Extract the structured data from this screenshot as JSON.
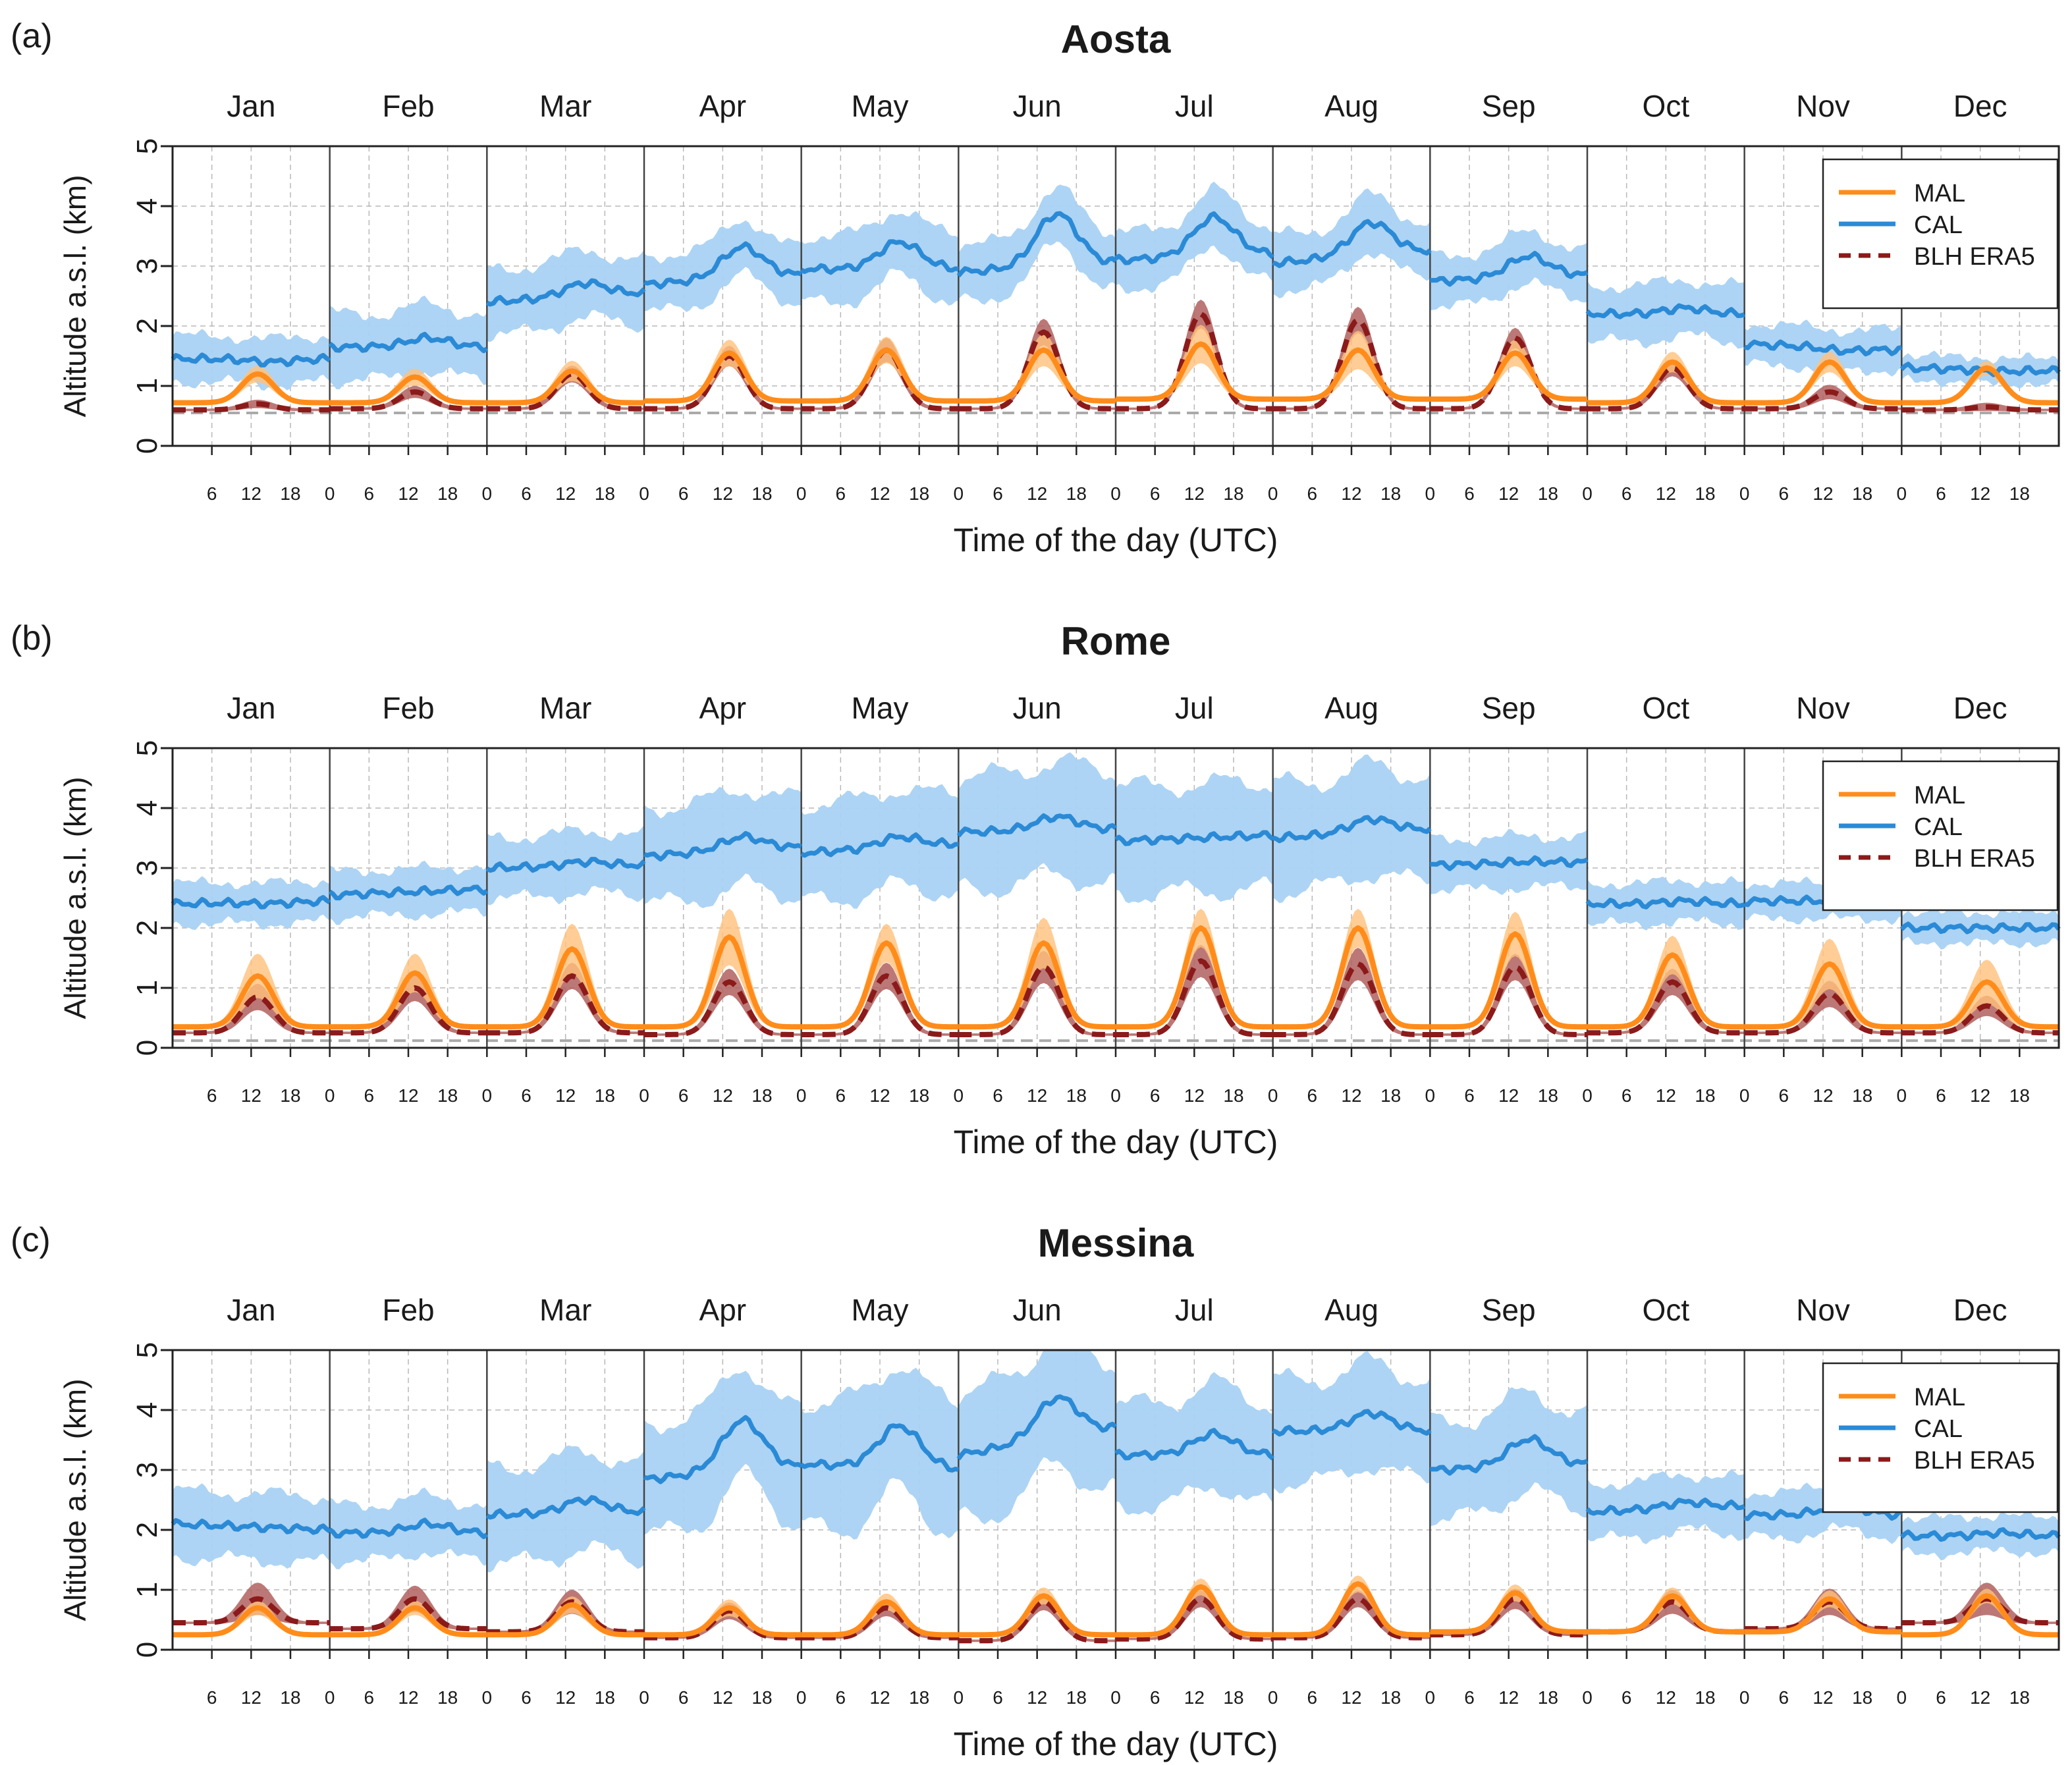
{
  "figure": {
    "xlabel": "Time of the day (UTC)",
    "ylabel": "Altitude a.s.l. (km)",
    "months": [
      "Jan",
      "Feb",
      "Mar",
      "Apr",
      "May",
      "Jun",
      "Jul",
      "Aug",
      "Sep",
      "Oct",
      "Nov",
      "Dec"
    ],
    "hour_ticks": [
      0,
      6,
      12,
      18
    ],
    "y_ticks": [
      0,
      1,
      2,
      3,
      4,
      5
    ],
    "legend": [
      "MAL",
      "CAL",
      "BLH ERA5"
    ],
    "colors": {
      "mal": "#ff8c1a",
      "mal_band": "#ffc07a",
      "cal": "#2b8ad6",
      "cal_band": "#a9d2f3",
      "blh": "#8b1a1a",
      "blh_band": "#b0605e",
      "ground": "#aaaaaa"
    }
  },
  "chart_data": [
    {
      "type": "line",
      "panel_label": "(a)",
      "title": "Aosta",
      "xlabel": "Time of the day (UTC)",
      "ylabel": "Altitude a.s.l. (km)",
      "ylim": [
        0,
        5
      ],
      "ground_level": 0.55,
      "first_hour_tick_jan": 6,
      "series": [
        {
          "name": "MAL",
          "base": [
            0.72,
            0.72,
            0.72,
            0.75,
            0.75,
            0.75,
            0.78,
            0.78,
            0.78,
            0.72,
            0.72,
            0.72
          ],
          "peak": [
            1.2,
            1.15,
            1.25,
            1.55,
            1.6,
            1.6,
            1.7,
            1.6,
            1.55,
            1.4,
            1.4,
            1.3
          ],
          "band": [
            0.12,
            0.12,
            0.15,
            0.2,
            0.2,
            0.25,
            0.3,
            0.3,
            0.2,
            0.15,
            0.15,
            0.1
          ]
        },
        {
          "name": "CAL",
          "start": [
            1.45,
            1.65,
            2.4,
            2.7,
            2.95,
            2.9,
            3.1,
            3.05,
            2.75,
            2.2,
            1.7,
            1.3
          ],
          "peak": [
            1.4,
            1.8,
            2.7,
            3.3,
            3.4,
            3.85,
            3.8,
            3.7,
            3.15,
            2.3,
            1.6,
            1.25
          ],
          "end": [
            1.45,
            1.65,
            2.55,
            2.85,
            2.95,
            3.05,
            3.2,
            3.25,
            2.85,
            2.2,
            1.6,
            1.25
          ],
          "band": [
            0.45,
            0.65,
            0.65,
            0.55,
            0.65,
            0.55,
            0.55,
            0.55,
            0.5,
            0.55,
            0.4,
            0.25
          ]
        },
        {
          "name": "BLH ERA5",
          "base": [
            0.6,
            0.62,
            0.62,
            0.62,
            0.62,
            0.62,
            0.62,
            0.62,
            0.62,
            0.62,
            0.62,
            0.6
          ],
          "peak": [
            0.7,
            0.9,
            1.2,
            1.5,
            1.6,
            1.9,
            2.2,
            2.1,
            1.8,
            1.3,
            0.9,
            0.65
          ],
          "band": [
            0.05,
            0.08,
            0.12,
            0.15,
            0.18,
            0.2,
            0.22,
            0.2,
            0.15,
            0.12,
            0.1,
            0.05
          ]
        }
      ]
    },
    {
      "type": "line",
      "panel_label": "(b)",
      "title": "Rome",
      "xlabel": "Time of the day (UTC)",
      "ylabel": "Altitude a.s.l. (km)",
      "ylim": [
        0,
        5
      ],
      "ground_level": 0.12,
      "first_hour_tick_jan": 6,
      "series": [
        {
          "name": "MAL",
          "base": [
            0.35,
            0.35,
            0.35,
            0.35,
            0.35,
            0.35,
            0.35,
            0.35,
            0.35,
            0.35,
            0.35,
            0.35
          ],
          "peak": [
            1.2,
            1.25,
            1.65,
            1.85,
            1.75,
            1.75,
            2.0,
            2.0,
            1.9,
            1.55,
            1.4,
            1.1
          ],
          "band": [
            0.35,
            0.3,
            0.4,
            0.45,
            0.3,
            0.4,
            0.3,
            0.3,
            0.35,
            0.3,
            0.4,
            0.35
          ]
        },
        {
          "name": "CAL",
          "start": [
            2.4,
            2.55,
            3.0,
            3.2,
            3.25,
            3.6,
            3.45,
            3.5,
            3.05,
            2.4,
            2.45,
            2.0
          ],
          "peak": [
            2.4,
            2.6,
            3.1,
            3.5,
            3.5,
            3.85,
            3.5,
            3.8,
            3.1,
            2.45,
            2.45,
            2.0
          ],
          "end": [
            2.45,
            2.65,
            3.05,
            3.35,
            3.4,
            3.65,
            3.55,
            3.65,
            3.1,
            2.4,
            2.45,
            2.0
          ],
          "band": [
            0.4,
            0.45,
            0.6,
            0.95,
            0.95,
            1.1,
            1.05,
            1.05,
            0.5,
            0.4,
            0.35,
            0.3
          ]
        },
        {
          "name": "BLH ERA5",
          "base": [
            0.25,
            0.25,
            0.25,
            0.22,
            0.22,
            0.22,
            0.22,
            0.22,
            0.22,
            0.25,
            0.25,
            0.25
          ],
          "peak": [
            0.85,
            1.0,
            1.2,
            1.1,
            1.2,
            1.35,
            1.45,
            1.4,
            1.35,
            1.1,
            0.9,
            0.7
          ],
          "band": [
            0.2,
            0.2,
            0.2,
            0.2,
            0.2,
            0.25,
            0.25,
            0.25,
            0.2,
            0.2,
            0.2,
            0.15
          ]
        }
      ]
    },
    {
      "type": "line",
      "panel_label": "(c)",
      "title": "Messina",
      "xlabel": "Time of the day (UTC)",
      "ylabel": "Altitude a.s.l. (km)",
      "ylim": [
        0,
        5
      ],
      "ground_level": null,
      "first_hour_tick_jan": 6,
      "series": [
        {
          "name": "MAL",
          "base": [
            0.25,
            0.25,
            0.25,
            0.25,
            0.25,
            0.25,
            0.25,
            0.25,
            0.3,
            0.3,
            0.3,
            0.25
          ],
          "peak": [
            0.7,
            0.7,
            0.75,
            0.7,
            0.8,
            0.9,
            1.05,
            1.1,
            0.95,
            0.9,
            0.85,
            0.9
          ],
          "band": [
            0.1,
            0.1,
            0.12,
            0.12,
            0.12,
            0.12,
            0.12,
            0.12,
            0.12,
            0.12,
            0.12,
            0.1
          ]
        },
        {
          "name": "CAL",
          "start": [
            2.1,
            1.95,
            2.25,
            2.85,
            3.1,
            3.25,
            3.25,
            3.65,
            3.0,
            2.3,
            2.25,
            1.9
          ],
          "peak": [
            2.05,
            2.1,
            2.5,
            3.8,
            3.75,
            4.15,
            3.6,
            3.95,
            3.5,
            2.45,
            2.4,
            1.95
          ],
          "end": [
            2.0,
            1.95,
            2.3,
            3.05,
            3.0,
            3.7,
            3.25,
            3.65,
            3.1,
            2.4,
            2.25,
            1.9
          ],
          "band": [
            0.65,
            0.55,
            0.95,
            1.1,
            1.25,
            1.25,
            1.0,
            1.0,
            0.95,
            0.55,
            0.45,
            0.35
          ]
        },
        {
          "name": "BLH ERA5",
          "base": [
            0.45,
            0.35,
            0.3,
            0.2,
            0.2,
            0.15,
            0.18,
            0.2,
            0.25,
            0.3,
            0.35,
            0.45
          ],
          "peak": [
            0.85,
            0.85,
            0.8,
            0.65,
            0.7,
            0.8,
            0.85,
            0.85,
            0.85,
            0.8,
            0.8,
            0.85
          ],
          "band": [
            0.25,
            0.2,
            0.18,
            0.12,
            0.12,
            0.12,
            0.12,
            0.12,
            0.15,
            0.18,
            0.2,
            0.25
          ]
        }
      ]
    }
  ]
}
